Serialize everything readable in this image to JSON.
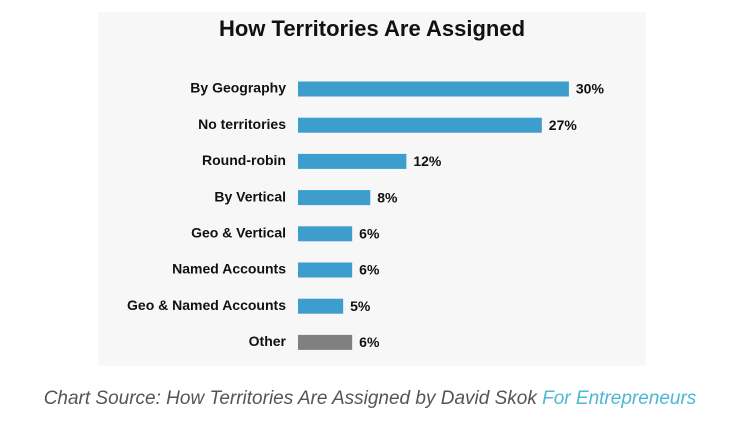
{
  "chart_data": {
    "type": "bar",
    "orientation": "horizontal",
    "title": "How Territories Are Assigned",
    "categories": [
      "By Geography",
      "No territories",
      "Round-robin",
      "By Vertical",
      "Geo & Vertical",
      "Named Accounts",
      "Geo & Named Accounts",
      "Other"
    ],
    "values": [
      30,
      27,
      12,
      8,
      6,
      6,
      5,
      6
    ],
    "value_labels": [
      "30%",
      "27%",
      "12%",
      "8%",
      "6%",
      "6%",
      "5%",
      "6%"
    ],
    "colors": [
      "#3d9dcc",
      "#3d9dcc",
      "#3d9dcc",
      "#3d9dcc",
      "#3d9dcc",
      "#3d9dcc",
      "#3d9dcc",
      "#808080"
    ]
  },
  "caption": {
    "text": "Chart Source: How Territories Are Assigned by David Skok",
    "link": "For Entrepreneurs"
  }
}
